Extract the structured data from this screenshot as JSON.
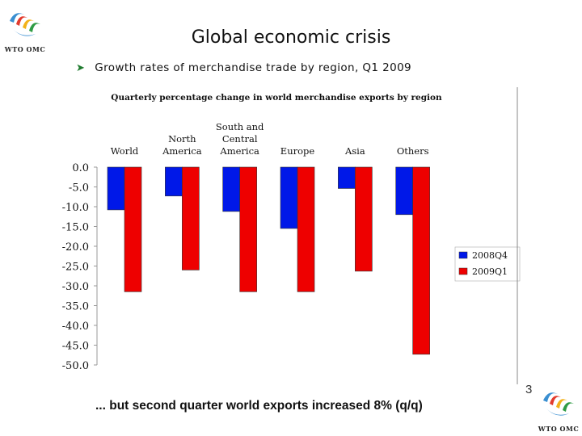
{
  "slide": {
    "title": "Global economic crisis",
    "bullet": "Growth rates of merchandise trade by region, Q1 2009",
    "footer": "... but second quarter world exports increased 8% (q/q)",
    "page_number": "3",
    "logo_text": "WTO OMC"
  },
  "colors": {
    "series_2008Q4": "#0018e8",
    "series_2009Q1": "#ee0000",
    "bullet_arrow": "#1e7a2e"
  },
  "icons": {
    "logo": "wto-logo-icon",
    "bullet": "arrow-bullet-icon"
  },
  "chart_data": {
    "type": "bar",
    "title": "Quarterly percentage change in world merchandise exports by region",
    "categories": [
      [
        "World"
      ],
      [
        "North",
        "America"
      ],
      [
        "South and",
        "Central",
        "America"
      ],
      [
        "Europe"
      ],
      [
        "Asia"
      ],
      [
        "Others"
      ]
    ],
    "series": [
      {
        "name": "2008Q4",
        "values": [
          -10.8,
          -7.3,
          -11.2,
          -15.5,
          -5.4,
          -12.0
        ]
      },
      {
        "name": "2009Q1",
        "values": [
          -31.5,
          -26.0,
          -31.5,
          -31.5,
          -26.3,
          -47.3
        ]
      }
    ],
    "yticks": [
      "0.0",
      "-5.0",
      "-10.0",
      "-15.0",
      "-20.0",
      "-25.0",
      "-30.0",
      "-35.0",
      "-40.0",
      "-45.0",
      "-50.0"
    ],
    "ylim": [
      -50,
      0
    ],
    "xlabel": "",
    "ylabel": "",
    "grid": false,
    "legend_position": "right"
  }
}
